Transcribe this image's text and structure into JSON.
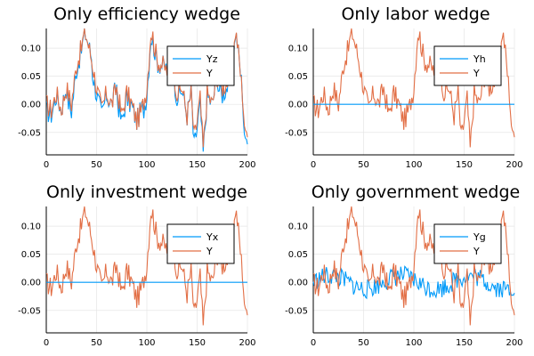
{
  "colors": {
    "series1": "#009af9",
    "series2": "#e26f46",
    "grid": "#e6e6e6"
  },
  "chart_data": [
    {
      "type": "line",
      "title": "Only efficiency wedge",
      "xlim": [
        0,
        200
      ],
      "ylim": [
        -0.09,
        0.135
      ],
      "xticks": [
        "0",
        "50",
        "100",
        "150",
        "200"
      ],
      "yticks": [
        "-0.05",
        "0.00",
        "0.05",
        "0.10"
      ],
      "ytick_values": [
        -0.05,
        0,
        0.05,
        0.1
      ],
      "xtick_values": [
        0,
        50,
        100,
        150,
        200
      ],
      "grid": true,
      "legend": "top-right",
      "series": [
        {
          "name": "Yz",
          "kind": "efficiency"
        },
        {
          "name": "Y",
          "kind": "output"
        }
      ]
    },
    {
      "type": "line",
      "title": "Only labor wedge",
      "xlim": [
        0,
        200
      ],
      "ylim": [
        -0.09,
        0.135
      ],
      "xticks": [
        "0",
        "50",
        "100",
        "150",
        "200"
      ],
      "yticks": [
        "-0.05",
        "0.00",
        "0.05",
        "0.10"
      ],
      "ytick_values": [
        -0.05,
        0,
        0.05,
        0.1
      ],
      "xtick_values": [
        0,
        50,
        100,
        150,
        200
      ],
      "grid": true,
      "legend": "top-right",
      "series": [
        {
          "name": "Yh",
          "kind": "flat"
        },
        {
          "name": "Y",
          "kind": "output"
        }
      ]
    },
    {
      "type": "line",
      "title": "Only investment wedge",
      "xlim": [
        0,
        200
      ],
      "ylim": [
        -0.09,
        0.135
      ],
      "xticks": [
        "0",
        "50",
        "100",
        "150",
        "200"
      ],
      "yticks": [
        "-0.05",
        "0.00",
        "0.05",
        "0.10"
      ],
      "ytick_values": [
        -0.05,
        0,
        0.05,
        0.1
      ],
      "xtick_values": [
        0,
        50,
        100,
        150,
        200
      ],
      "grid": true,
      "legend": "top-right",
      "series": [
        {
          "name": "Yx",
          "kind": "flat"
        },
        {
          "name": "Y",
          "kind": "output"
        }
      ]
    },
    {
      "type": "line",
      "title": "Only government wedge",
      "xlim": [
        0,
        200
      ],
      "ylim": [
        -0.09,
        0.135
      ],
      "xticks": [
        "0",
        "50",
        "100",
        "150",
        "200"
      ],
      "yticks": [
        "-0.05",
        "0.00",
        "0.05",
        "0.10"
      ],
      "ytick_values": [
        -0.05,
        0,
        0.05,
        0.1
      ],
      "xtick_values": [
        0,
        50,
        100,
        150,
        200
      ],
      "grid": true,
      "legend": "top-right",
      "series": [
        {
          "name": "Yg",
          "kind": "noise"
        },
        {
          "name": "Y",
          "kind": "output"
        }
      ]
    }
  ],
  "output_series_Y": {
    "x": [
      0,
      5,
      10,
      15,
      20,
      25,
      30,
      35,
      38,
      40,
      45,
      50,
      55,
      60,
      65,
      70,
      75,
      80,
      85,
      90,
      95,
      100,
      104,
      106,
      110,
      115,
      120,
      125,
      130,
      135,
      140,
      144,
      147,
      150,
      153,
      156,
      160,
      165,
      170,
      175,
      180,
      185,
      188,
      190,
      195,
      198,
      200
    ],
    "y": [
      0.0,
      -0.01,
      0.02,
      -0.01,
      0.03,
      0.0,
      0.07,
      0.1,
      0.13,
      0.12,
      0.08,
      0.03,
      -0.01,
      0.02,
      0.0,
      0.03,
      -0.02,
      0.02,
      0.0,
      -0.03,
      -0.01,
      0.03,
      0.13,
      0.12,
      0.08,
      0.07,
      0.06,
      0.08,
      0.02,
      0.03,
      -0.02,
      0.02,
      -0.06,
      -0.03,
      0.01,
      -0.08,
      0.02,
      0.0,
      0.05,
      0.03,
      0.04,
      0.06,
      0.13,
      0.11,
      0.02,
      -0.06,
      -0.04
    ]
  },
  "efficiency_series_Yz": {
    "x": [
      0,
      5,
      10,
      15,
      20,
      25,
      30,
      35,
      38,
      40,
      45,
      50,
      55,
      60,
      65,
      70,
      75,
      80,
      85,
      90,
      95,
      100,
      104,
      106,
      110,
      115,
      120,
      125,
      130,
      135,
      140,
      144,
      147,
      150,
      153,
      156,
      160,
      165,
      170,
      175,
      180,
      185,
      188,
      190,
      195,
      198,
      200
    ],
    "y": [
      0.0,
      -0.02,
      0.01,
      -0.02,
      0.02,
      -0.01,
      0.06,
      0.09,
      0.13,
      0.12,
      0.07,
      0.02,
      -0.02,
      0.01,
      -0.01,
      0.02,
      -0.03,
      0.01,
      -0.01,
      -0.04,
      -0.02,
      0.02,
      0.12,
      0.12,
      0.07,
      0.06,
      0.05,
      0.07,
      0.01,
      0.02,
      -0.03,
      0.01,
      -0.07,
      -0.04,
      0.0,
      -0.07,
      0.01,
      -0.01,
      0.04,
      0.02,
      0.03,
      0.05,
      0.12,
      0.1,
      0.01,
      -0.07,
      -0.05
    ]
  }
}
